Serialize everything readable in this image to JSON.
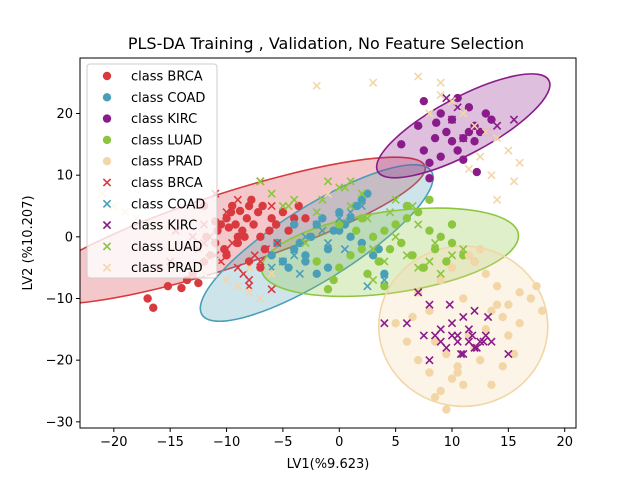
{
  "chart_data": {
    "type": "scatter",
    "title": "PLS-DA Training , Validation, No Feature Selection",
    "xlabel": "LV1(%9.623)",
    "ylabel": "LV2 (%10.207)",
    "xlim": [
      -23,
      21
    ],
    "ylim": [
      -31,
      29
    ],
    "xticks": [
      -20,
      -15,
      -10,
      -5,
      0,
      5,
      10,
      15,
      20
    ],
    "yticks": [
      -30,
      -20,
      -10,
      0,
      10,
      20
    ],
    "grid": false,
    "legend_position": "upper-left",
    "classes": [
      {
        "name": "BRCA",
        "color": "#d83a3f",
        "ellipse": {
          "cx": -10,
          "cy": 1,
          "rx": 18.5,
          "ry": 6.0,
          "angle": 18
        }
      },
      {
        "name": "COAD",
        "color": "#4a9fb8",
        "ellipse": {
          "cx": -2,
          "cy": -1,
          "rx": 12.0,
          "ry": 6.0,
          "angle": 32
        }
      },
      {
        "name": "KIRC",
        "color": "#8a1b8a",
        "ellipse": {
          "cx": 11,
          "cy": 18,
          "rx": 8.6,
          "ry": 4.6,
          "angle": 28
        }
      },
      {
        "name": "LUAD",
        "color": "#8cc63f",
        "ellipse": {
          "cx": 4.5,
          "cy": -2.5,
          "rx": 11.5,
          "ry": 6.6,
          "angle": 8
        }
      },
      {
        "name": "PRAD",
        "color": "#f3d6a8",
        "ellipse": {
          "cx": 11,
          "cy": -14.5,
          "rx": 7.5,
          "ry": 13.0,
          "angle": 0
        }
      }
    ],
    "legend": [
      {
        "label": "class BRCA",
        "marker": "circle",
        "color": "#d83a3f"
      },
      {
        "label": "class COAD",
        "marker": "circle",
        "color": "#4a9fb8"
      },
      {
        "label": "class KIRC",
        "marker": "circle",
        "color": "#8a1b8a"
      },
      {
        "label": "class LUAD",
        "marker": "circle",
        "color": "#8cc63f"
      },
      {
        "label": "class PRAD",
        "marker": "circle",
        "color": "#f3d6a8"
      },
      {
        "label": "class BRCA",
        "marker": "x",
        "color": "#d83a3f"
      },
      {
        "label": "class COAD",
        "marker": "x",
        "color": "#4a9fb8"
      },
      {
        "label": "class KIRC",
        "marker": "x",
        "color": "#8a1b8a"
      },
      {
        "label": "class LUAD",
        "marker": "x",
        "color": "#8cc63f"
      },
      {
        "label": "class PRAD",
        "marker": "x",
        "color": "#f3d6a8"
      }
    ],
    "series": [
      {
        "class": "BRCA",
        "set": "training",
        "marker": "circle",
        "x": [
          -17,
          -16.5,
          -15.2,
          -14,
          -13,
          -12.5,
          -12,
          -11.5,
          -11,
          -10.8,
          -10.5,
          -10,
          -9.6,
          -9.2,
          -9,
          -8.6,
          -8.2,
          -8,
          -7.6,
          -7.2,
          -7,
          -6.6,
          -6.2,
          -6,
          -5.6,
          -5,
          -4.5,
          -4,
          -3.6,
          -3,
          -12,
          -11,
          -10,
          -9,
          -8,
          -7,
          -13.5,
          -11.8,
          -9.5,
          -8.8,
          -7.8,
          -6.8,
          -10.2,
          -9.8,
          -8.4
        ],
        "y": [
          -10,
          -11.5,
          -8,
          -8.3,
          -6,
          -7.5,
          -4,
          -3,
          -1,
          1,
          2,
          3,
          4,
          2,
          0,
          1,
          3,
          5,
          2,
          4,
          0,
          -2,
          1,
          3,
          2,
          4,
          1,
          3,
          5,
          3,
          5,
          2.5,
          -3,
          -1,
          -4,
          -5,
          -7,
          0,
          5,
          4.2,
          6,
          5,
          -2,
          1.5,
          0
        ]
      },
      {
        "class": "COAD",
        "set": "training",
        "marker": "circle",
        "x": [
          -6,
          -5,
          -4.5,
          -4,
          -3.5,
          -3,
          -2.5,
          -2,
          -1.5,
          -1,
          -0.5,
          0,
          0.5,
          1,
          1.5,
          2,
          2.5,
          3,
          3.5,
          4,
          -3,
          -2,
          -1,
          0,
          1,
          2,
          -4,
          -5.5
        ],
        "y": [
          -3,
          -4,
          -5,
          -2,
          -1,
          -3,
          0,
          2,
          3,
          -2,
          1,
          4,
          2,
          3,
          5,
          6,
          7,
          -3,
          -2,
          -6,
          -4,
          -6,
          -5,
          1,
          0,
          -1,
          2,
          -1
        ]
      },
      {
        "class": "KIRC",
        "set": "training",
        "marker": "circle",
        "x": [
          5.5,
          7,
          7.5,
          8,
          8.5,
          9,
          9.5,
          10,
          10.5,
          11,
          11.5,
          12,
          12.5,
          13,
          13.5,
          8,
          9,
          10,
          11,
          12,
          7.5,
          10.5,
          11.5,
          12.2,
          8.6
        ],
        "y": [
          15,
          18,
          14,
          12,
          16,
          20,
          17,
          19,
          14,
          16,
          21,
          18,
          17,
          20,
          19,
          9.5,
          13,
          15.5,
          12.5,
          15.5,
          22,
          22.5,
          17,
          10.5,
          18.5
        ]
      },
      {
        "class": "LUAD",
        "set": "training",
        "marker": "circle",
        "x": [
          -1,
          0,
          1,
          2,
          3,
          4,
          5,
          6,
          7,
          8,
          9,
          10,
          11,
          12,
          2.5,
          3.5,
          4.5,
          5.5,
          6.5,
          7.5,
          8.5,
          9.5,
          0,
          1.5,
          -0.5,
          2,
          4,
          6,
          8,
          10,
          -2
        ],
        "y": [
          -8.5,
          -5,
          -3,
          -2,
          0,
          1,
          2,
          3,
          4,
          1,
          0,
          -1,
          -3,
          -4,
          -6,
          -4,
          -2,
          -1,
          -3,
          -5,
          -2,
          -4,
          2,
          1,
          -7,
          3,
          -8,
          5,
          6,
          2,
          -4
        ]
      },
      {
        "class": "PRAD",
        "set": "training",
        "marker": "circle",
        "x": [
          5,
          6,
          7,
          8,
          8.5,
          9,
          9.5,
          10,
          10.5,
          11,
          11.5,
          12,
          12.5,
          13,
          13.5,
          14,
          14.5,
          15,
          15.5,
          16,
          17,
          17.5,
          18,
          7,
          8,
          9,
          10,
          11,
          12,
          13,
          14,
          15,
          16,
          9.5,
          10.5,
          11.5,
          12.5,
          13.5,
          14.5,
          8.5,
          6.5
        ],
        "y": [
          -14,
          -17,
          -20,
          -22,
          -26,
          -25,
          -19,
          -23,
          -21,
          -24,
          -16,
          -18,
          -20,
          -15,
          -12,
          -11,
          -13,
          -16,
          -19,
          -14,
          -10,
          -8,
          -12,
          -9,
          -12,
          -7,
          -5,
          -10,
          -4,
          -6,
          -8,
          -11,
          -9,
          -28,
          -22,
          -3,
          -2,
          -24,
          -21,
          -17,
          -13
        ]
      },
      {
        "class": "BRCA",
        "set": "validation",
        "marker": "x",
        "x": [
          -16,
          -15,
          -14,
          -13,
          -12.5,
          -12,
          -11.5,
          -11,
          -10.5,
          -10,
          -9.5,
          -9,
          -8.5,
          -8,
          -7.5,
          -7,
          -6.5,
          -6,
          -5.5,
          -12,
          -10,
          -9,
          -8,
          -7,
          -6,
          -11,
          -13,
          -14.5
        ],
        "y": [
          -5,
          -4,
          -3,
          -6,
          -2,
          -1,
          0,
          -3,
          -4,
          -2,
          -1,
          -5,
          -6,
          -7,
          -3,
          -4,
          -2,
          -8.5,
          -1,
          2,
          4,
          6,
          -8,
          9,
          5,
          7,
          0,
          1
        ]
      },
      {
        "class": "COAD",
        "set": "validation",
        "marker": "x",
        "x": [
          -5,
          -4,
          -3,
          -2,
          -1,
          0,
          1,
          2,
          3,
          4,
          -3.5,
          -1.5,
          0.5,
          2.5,
          -6
        ],
        "y": [
          -4,
          -3,
          0,
          2,
          -1,
          3,
          4,
          5,
          -2,
          -7,
          -6,
          1,
          -2,
          -8,
          -5
        ]
      },
      {
        "class": "KIRC",
        "set": "validation",
        "marker": "x",
        "x": [
          4,
          6,
          7,
          8,
          8.5,
          9,
          9.5,
          10,
          10.5,
          11,
          11.5,
          12,
          12.5,
          13,
          13.5,
          15,
          9,
          10,
          11,
          12,
          8,
          7.5,
          10.5,
          11.5,
          12.2,
          13.2,
          9.8,
          10.8,
          11.8,
          12.8,
          11,
          12,
          13,
          10,
          14,
          15.5,
          9.5,
          10.5
        ],
        "y": [
          -14,
          -14,
          -9,
          -11,
          -16,
          -17,
          -18,
          -16,
          -17,
          -19,
          -15,
          -18,
          -17,
          -16,
          -17,
          -19,
          -15,
          -14,
          -13,
          -12,
          -20,
          -16,
          -16,
          -17,
          -18,
          -13,
          -11,
          -19,
          -16,
          -17,
          16,
          18,
          17,
          19,
          18,
          19,
          22.5,
          21
        ]
      },
      {
        "class": "LUAD",
        "set": "validation",
        "marker": "x",
        "x": [
          -7,
          -6,
          -5,
          -4,
          -3,
          -2,
          -1,
          0,
          1,
          2,
          3,
          4,
          5,
          6,
          7,
          8,
          9,
          10,
          11,
          -1.5,
          0.5,
          2.5,
          4.5,
          6.5,
          8.5,
          3,
          5,
          7,
          1,
          -4.5
        ],
        "y": [
          9,
          7,
          5,
          6,
          -1,
          4,
          9,
          8,
          5,
          7,
          -2,
          -4,
          0,
          -3,
          -5,
          -4,
          -6,
          -3,
          -2,
          6,
          8,
          3,
          4,
          5,
          -1,
          -7,
          6,
          2,
          9,
          5
        ]
      },
      {
        "class": "PRAD",
        "set": "validation",
        "marker": "x",
        "x": [
          -21,
          -19,
          -18,
          -17,
          -16,
          -15,
          -14,
          -13,
          -12,
          -11,
          -10,
          -9,
          -8,
          -7,
          -6,
          -20,
          -15,
          -12,
          -8,
          -2,
          3,
          7,
          9,
          10,
          11,
          12,
          13,
          14,
          15,
          16,
          13.5,
          15.5,
          14,
          12.5,
          11.5,
          8,
          9,
          -1
        ],
        "y": [
          7,
          4,
          3,
          2,
          1,
          -2,
          -3,
          -5,
          -6,
          -4,
          -7,
          -8,
          -9,
          -10,
          -6,
          5,
          -1,
          -3,
          -5,
          24.5,
          25,
          26,
          25,
          22,
          20,
          18,
          17,
          16,
          14,
          12,
          10,
          9,
          6,
          13,
          11,
          20,
          23,
          7
        ]
      }
    ]
  }
}
